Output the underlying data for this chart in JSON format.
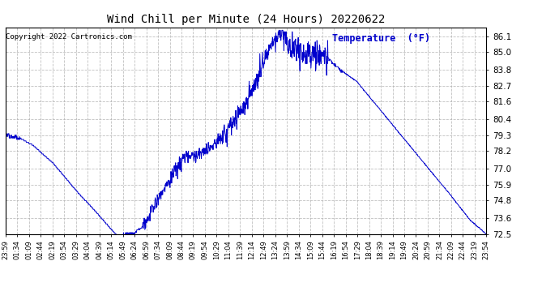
{
  "title": "Wind Chill per Minute (24 Hours) 20220622",
  "copyright": "Copyright 2022 Cartronics.com",
  "legend_label": "Temperature  (°F)",
  "line_color": "#0000cc",
  "bg_color": "#ffffff",
  "grid_color": "#b0b0b0",
  "ylim": [
    72.5,
    86.7
  ],
  "yticks": [
    72.5,
    73.6,
    74.8,
    75.9,
    77.0,
    78.2,
    79.3,
    80.4,
    81.6,
    82.7,
    83.8,
    85.0,
    86.1
  ],
  "x_tick_labels": [
    "23:59",
    "01:34",
    "01:09",
    "02:44",
    "02:19",
    "03:54",
    "03:29",
    "04:04",
    "04:39",
    "05:14",
    "05:49",
    "06:24",
    "06:59",
    "07:34",
    "08:09",
    "08:44",
    "09:19",
    "09:54",
    "10:29",
    "11:04",
    "11:39",
    "12:14",
    "12:49",
    "13:24",
    "13:59",
    "14:34",
    "15:09",
    "15:44",
    "16:19",
    "16:54",
    "17:29",
    "18:04",
    "18:39",
    "19:14",
    "19:49",
    "20:24",
    "20:59",
    "21:34",
    "22:09",
    "22:44",
    "23:19",
    "23:54"
  ],
  "keypoints_x": [
    0.0,
    0.03,
    0.055,
    0.1,
    0.155,
    0.195,
    0.245,
    0.265,
    0.285,
    0.32,
    0.37,
    0.4,
    0.43,
    0.455,
    0.475,
    0.5,
    0.535,
    0.555,
    0.575,
    0.6,
    0.625,
    0.645,
    0.67,
    0.695,
    0.73,
    0.78,
    0.83,
    0.88,
    0.925,
    0.965,
    1.0
  ],
  "keypoints_y": [
    79.3,
    79.1,
    78.7,
    77.5,
    75.5,
    74.2,
    72.5,
    72.5,
    73.0,
    75.0,
    77.8,
    78.0,
    78.5,
    79.5,
    80.2,
    81.5,
    84.0,
    85.8,
    86.1,
    85.2,
    84.9,
    84.8,
    84.6,
    83.8,
    83.0,
    81.0,
    79.0,
    77.0,
    75.2,
    73.5,
    72.5
  ]
}
